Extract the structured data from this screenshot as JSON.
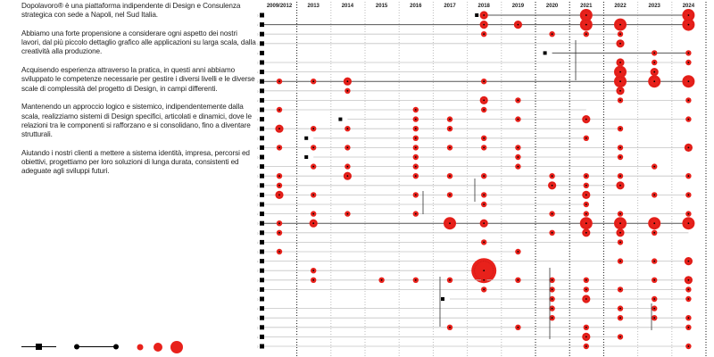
{
  "intro": {
    "paragraphs": [
      "Dopolavoro® è una piattaforma indipendente di Design e Consulenza strategica con sede a Napoli, nel Sud Italia.",
      "Abbiamo una forte propensione a considerare ogni aspetto dei nostri lavori, dal più piccolo dettaglio grafico alle applicazioni su larga scala, dalla creatività alla produzione.",
      "Acquisendo esperienza attraverso la pratica, in questi anni abbiamo sviluppato le competenze necessarie per gestire i diversi livelli e le diverse scale di complessità del progetto di Design, in campi differenti.",
      "Mantenendo un approccio logico e sistemico, indipendentemente dalla scala, realizziamo sistemi di Design specifici, articolati e dinamici, dove le relazioni tra le componenti si rafforzano e si consolidano, fino a diventare strutturali.",
      "Aiutando i nostri clienti a mettere a sistema identità, impresa, percorsi ed obiettivi, progettiamo per loro soluzioni di lunga durata, consistenti ed adeguate agli sviluppi futuri."
    ]
  },
  "timeline": {
    "years": [
      "2009/2012",
      "2013",
      "2014",
      "2015",
      "2016",
      "2017",
      "2018",
      "2019",
      "2020",
      "2021",
      "2022",
      "2023",
      "2024"
    ],
    "accent": "#e8211b",
    "rows": [
      {
        "s": 6,
        "e": 12,
        "dark": true,
        "c": [
          [
            6,
            2
          ],
          [
            9,
            3
          ],
          [
            12,
            3
          ]
        ]
      },
      {
        "s": 0,
        "e": 12,
        "dark": true,
        "c": [
          [
            6,
            2
          ],
          [
            7,
            2
          ],
          [
            9,
            3
          ],
          [
            10,
            3
          ],
          [
            12,
            3
          ]
        ]
      },
      {
        "s": 0,
        "e": 10,
        "dark": false,
        "c": [
          [
            6,
            1
          ],
          [
            8,
            1
          ],
          [
            9,
            1
          ],
          [
            10,
            1
          ]
        ]
      },
      {
        "s": 0,
        "e": 10,
        "dark": false,
        "c": [
          [
            10,
            2
          ]
        ]
      },
      {
        "s": 8,
        "e": 12,
        "dark": true,
        "c": [
          [
            11,
            1
          ],
          [
            12,
            1
          ]
        ]
      },
      {
        "s": 0,
        "e": 12,
        "dark": false,
        "c": [
          [
            10,
            2
          ],
          [
            11,
            1
          ],
          [
            12,
            1
          ]
        ]
      },
      {
        "s": 0,
        "e": 11,
        "dark": false,
        "c": [
          [
            10,
            3
          ],
          [
            11,
            2
          ]
        ]
      },
      {
        "s": 0,
        "e": 12,
        "dark": true,
        "c": [
          [
            0,
            1
          ],
          [
            1,
            1
          ],
          [
            2,
            2
          ],
          [
            6,
            1
          ],
          [
            10,
            3
          ],
          [
            11,
            3
          ],
          [
            12,
            3
          ]
        ]
      },
      {
        "s": 0,
        "e": 10,
        "dark": false,
        "c": [
          [
            2,
            1
          ],
          [
            10,
            2
          ]
        ]
      },
      {
        "s": 0,
        "e": 12,
        "dark": false,
        "c": [
          [
            6,
            2
          ],
          [
            7,
            1
          ],
          [
            10,
            1
          ],
          [
            12,
            1
          ]
        ]
      },
      {
        "s": 0,
        "e": 9,
        "dark": false,
        "c": [
          [
            0,
            1
          ],
          [
            4,
            1
          ],
          [
            6,
            1
          ]
        ]
      },
      {
        "s": 2,
        "e": 12,
        "dark": false,
        "c": [
          [
            4,
            1
          ],
          [
            5,
            1
          ],
          [
            7,
            1
          ],
          [
            9,
            2
          ],
          [
            12,
            1
          ]
        ]
      },
      {
        "s": 0,
        "e": 10,
        "dark": false,
        "c": [
          [
            0,
            2
          ],
          [
            1,
            1
          ],
          [
            2,
            1
          ],
          [
            4,
            1
          ],
          [
            5,
            1
          ],
          [
            10,
            1
          ]
        ]
      },
      {
        "s": 1,
        "e": 9,
        "dark": false,
        "c": [
          [
            4,
            1
          ],
          [
            6,
            1
          ],
          [
            9,
            1
          ]
        ]
      },
      {
        "s": 0,
        "e": 12,
        "dark": false,
        "c": [
          [
            0,
            1
          ],
          [
            1,
            1
          ],
          [
            2,
            1
          ],
          [
            4,
            1
          ],
          [
            5,
            1
          ],
          [
            6,
            1
          ],
          [
            7,
            1
          ],
          [
            10,
            1
          ],
          [
            12,
            2
          ]
        ]
      },
      {
        "s": 1,
        "e": 10,
        "dark": false,
        "c": [
          [
            4,
            1
          ],
          [
            7,
            1
          ],
          [
            10,
            1
          ]
        ]
      },
      {
        "s": 0,
        "e": 11,
        "dark": false,
        "c": [
          [
            1,
            1
          ],
          [
            2,
            1
          ],
          [
            4,
            1
          ],
          [
            7,
            1
          ],
          [
            11,
            1
          ]
        ]
      },
      {
        "s": 0,
        "e": 12,
        "dark": false,
        "c": [
          [
            0,
            1
          ],
          [
            2,
            2
          ],
          [
            4,
            1
          ],
          [
            5,
            1
          ],
          [
            6,
            1
          ],
          [
            8,
            1
          ],
          [
            9,
            1
          ],
          [
            10,
            1
          ],
          [
            12,
            1
          ]
        ]
      },
      {
        "s": 0,
        "e": 10,
        "dark": false,
        "c": [
          [
            0,
            1
          ],
          [
            8,
            2
          ],
          [
            9,
            1
          ],
          [
            10,
            2
          ]
        ]
      },
      {
        "s": 0,
        "e": 12,
        "dark": false,
        "c": [
          [
            0,
            2
          ],
          [
            1,
            1
          ],
          [
            4,
            1
          ],
          [
            5,
            1
          ],
          [
            6,
            1
          ],
          [
            9,
            2
          ],
          [
            11,
            1
          ],
          [
            12,
            1
          ]
        ]
      },
      {
        "s": 0,
        "e": 9,
        "dark": false,
        "c": [
          [
            6,
            1
          ],
          [
            9,
            1
          ]
        ]
      },
      {
        "s": 0,
        "e": 12,
        "dark": false,
        "c": [
          [
            1,
            1
          ],
          [
            2,
            1
          ],
          [
            4,
            1
          ],
          [
            8,
            1
          ],
          [
            9,
            1
          ],
          [
            10,
            1
          ],
          [
            12,
            1
          ]
        ]
      },
      {
        "s": 0,
        "e": 12,
        "dark": true,
        "c": [
          [
            0,
            1
          ],
          [
            1,
            2
          ],
          [
            5,
            3
          ],
          [
            6,
            2
          ],
          [
            9,
            3
          ],
          [
            10,
            3
          ],
          [
            11,
            3
          ],
          [
            12,
            3
          ]
        ]
      },
      {
        "s": 0,
        "e": 12,
        "dark": false,
        "c": [
          [
            0,
            1
          ],
          [
            8,
            1
          ],
          [
            9,
            2
          ],
          [
            10,
            2
          ],
          [
            11,
            1
          ]
        ]
      },
      {
        "s": 0,
        "e": 10,
        "dark": false,
        "c": [
          [
            6,
            1
          ],
          [
            10,
            1
          ]
        ]
      },
      {
        "s": 0,
        "e": 7,
        "dark": false,
        "c": [
          [
            0,
            1
          ],
          [
            7,
            1
          ]
        ]
      },
      {
        "s": 0,
        "e": 12,
        "dark": false,
        "c": [
          [
            10,
            1
          ],
          [
            11,
            1
          ],
          [
            12,
            2
          ]
        ]
      },
      {
        "s": 0,
        "e": 6,
        "dark": false,
        "c": [
          [
            1,
            1
          ],
          [
            6,
            4
          ]
        ]
      },
      {
        "s": 0,
        "e": 12,
        "dark": false,
        "c": [
          [
            1,
            1
          ],
          [
            3,
            1
          ],
          [
            4,
            1
          ],
          [
            5,
            1
          ],
          [
            6,
            1
          ],
          [
            7,
            1
          ],
          [
            8,
            1
          ],
          [
            9,
            1
          ],
          [
            11,
            1
          ],
          [
            12,
            2
          ]
        ]
      },
      {
        "s": 0,
        "e": 12,
        "dark": false,
        "c": [
          [
            6,
            1
          ],
          [
            8,
            1
          ],
          [
            9,
            1
          ],
          [
            10,
            1
          ],
          [
            12,
            1
          ]
        ]
      },
      {
        "s": 5,
        "e": 12,
        "dark": false,
        "c": [
          [
            8,
            1
          ],
          [
            9,
            2
          ],
          [
            11,
            1
          ],
          [
            12,
            1
          ]
        ]
      },
      {
        "s": 0,
        "e": 11,
        "dark": false,
        "c": [
          [
            8,
            1
          ],
          [
            10,
            1
          ],
          [
            11,
            1
          ]
        ]
      },
      {
        "s": 0,
        "e": 12,
        "dark": false,
        "c": [
          [
            8,
            1
          ],
          [
            10,
            1
          ],
          [
            11,
            1
          ],
          [
            12,
            1
          ]
        ]
      },
      {
        "s": 0,
        "e": 12,
        "dark": false,
        "c": [
          [
            5,
            1
          ],
          [
            7,
            1
          ],
          [
            9,
            1
          ],
          [
            12,
            1
          ]
        ]
      },
      {
        "s": 0,
        "e": 10,
        "dark": false,
        "c": [
          [
            9,
            2
          ],
          [
            10,
            1
          ]
        ]
      },
      {
        "s": 0,
        "e": 12,
        "dark": false,
        "c": [
          [
            9,
            1
          ],
          [
            12,
            1
          ]
        ]
      }
    ]
  },
  "legend": {
    "items": [
      "project-start",
      "project-span",
      "size-small",
      "size-medium",
      "size-large"
    ]
  }
}
